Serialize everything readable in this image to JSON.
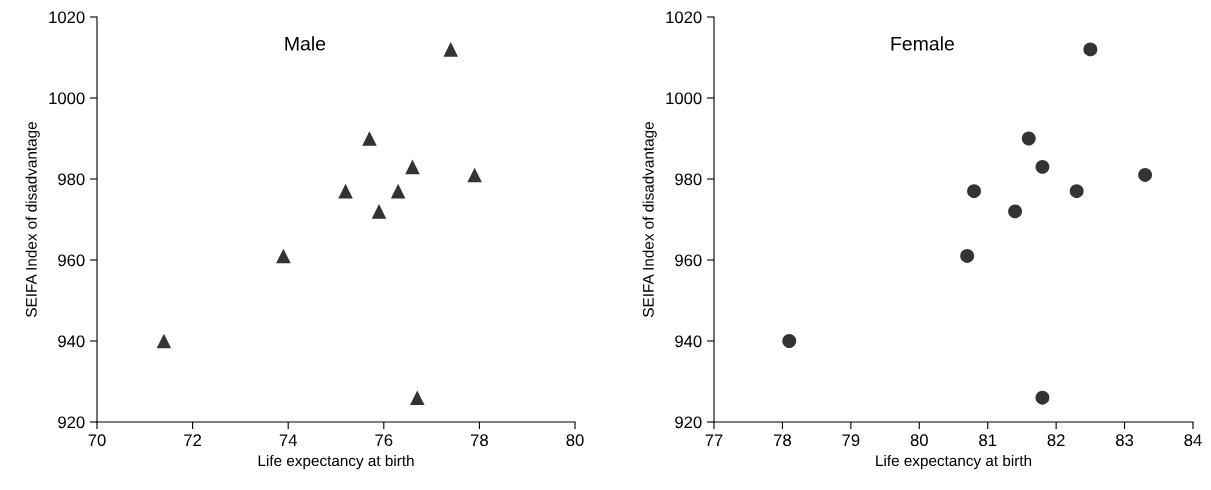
{
  "chart_data": [
    {
      "type": "scatter",
      "title": "Male",
      "xlabel": "Life expectancy at birth",
      "ylabel": "SEIFA Index of disadvantage",
      "x": [
        71.4,
        73.9,
        75.2,
        75.7,
        75.9,
        76.3,
        76.6,
        76.7,
        77.4,
        77.9
      ],
      "values": [
        940,
        961,
        977,
        990,
        972,
        977,
        983,
        926,
        1012,
        981
      ],
      "color": "#333333",
      "marker": "triangle",
      "xlim": [
        70,
        80
      ],
      "xticks": [
        70,
        72,
        74,
        76,
        78,
        80
      ],
      "ylim": [
        920,
        1020
      ],
      "yticks": [
        920,
        940,
        960,
        980,
        1000,
        1020
      ],
      "grid": false,
      "legend": false
    },
    {
      "type": "scatter",
      "title": "Female",
      "xlabel": "Life expectancy at birth",
      "ylabel": "SEIFA Index of disadvantage",
      "x": [
        78.1,
        80.7,
        80.8,
        81.6,
        81.4,
        82.3,
        81.8,
        81.8,
        82.5,
        83.3
      ],
      "values": [
        940,
        961,
        977,
        990,
        972,
        977,
        983,
        926,
        1012,
        981
      ],
      "color": "#333333",
      "marker": "circle",
      "xlim": [
        77,
        84
      ],
      "xticks": [
        77,
        78,
        79,
        80,
        81,
        82,
        83,
        84
      ],
      "ylim": [
        920,
        1020
      ],
      "yticks": [
        920,
        940,
        960,
        980,
        1000,
        1020
      ],
      "grid": false,
      "legend": false
    }
  ]
}
